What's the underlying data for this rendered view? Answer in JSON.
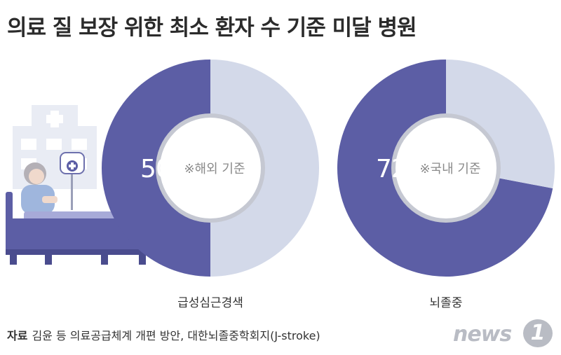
{
  "title": "의료 질 보장 위한 최소 환자 수 기준 미달 병원",
  "colors": {
    "primary": "#5c5ea5",
    "secondary": "#d3d9e9",
    "inner_ring": "#c5c8d2",
    "label_text": "#ffffff",
    "center_text": "#8a8a8a"
  },
  "chart_data": [
    {
      "type": "pie",
      "variant": "donut",
      "caption": "급성심근경색",
      "value_label": "50%",
      "center_text": "※해외 기준",
      "slices": [
        {
          "value": 50,
          "color": "#5c5ea5"
        },
        {
          "value": 50,
          "color": "#d3d9e9"
        }
      ]
    },
    {
      "type": "pie",
      "variant": "donut",
      "caption": "뇌졸중",
      "value_label": "72%",
      "center_text": "※국내 기준",
      "slices": [
        {
          "value": 72,
          "color": "#5c5ea5"
        },
        {
          "value": 28,
          "color": "#d3d9e9"
        }
      ]
    }
  ],
  "source": {
    "label": "자료",
    "text": "김윤 등 의료공급체계 개편 방안, 대한뇌졸중학회지(J-stroke)"
  },
  "logo": {
    "word": "news",
    "mark": "1",
    "icon": "news1-logo"
  },
  "illustration": {
    "icon": "hospital-patient-bed-illustration"
  }
}
